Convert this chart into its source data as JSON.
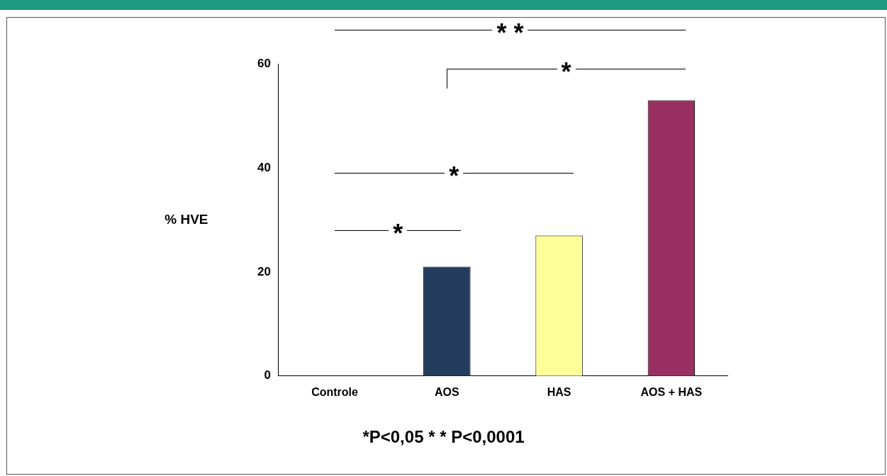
{
  "chart_data": {
    "type": "bar",
    "categories": [
      "Controle",
      "AOS",
      "HAS",
      "AOS + HAS"
    ],
    "values": [
      0,
      21,
      27,
      53
    ],
    "colors": [
      "#2e9e6a",
      "#243d5e",
      "#ffff99",
      "#9a2f61"
    ],
    "ylabel": "% HVE",
    "ylim": [
      0,
      60
    ],
    "yticks": [
      0,
      20,
      40,
      60
    ],
    "grid": false,
    "legend": false,
    "annotations": [
      "* *",
      "*",
      "*",
      "*",
      "*P<0,05    * * P<0,0001"
    ]
  }
}
